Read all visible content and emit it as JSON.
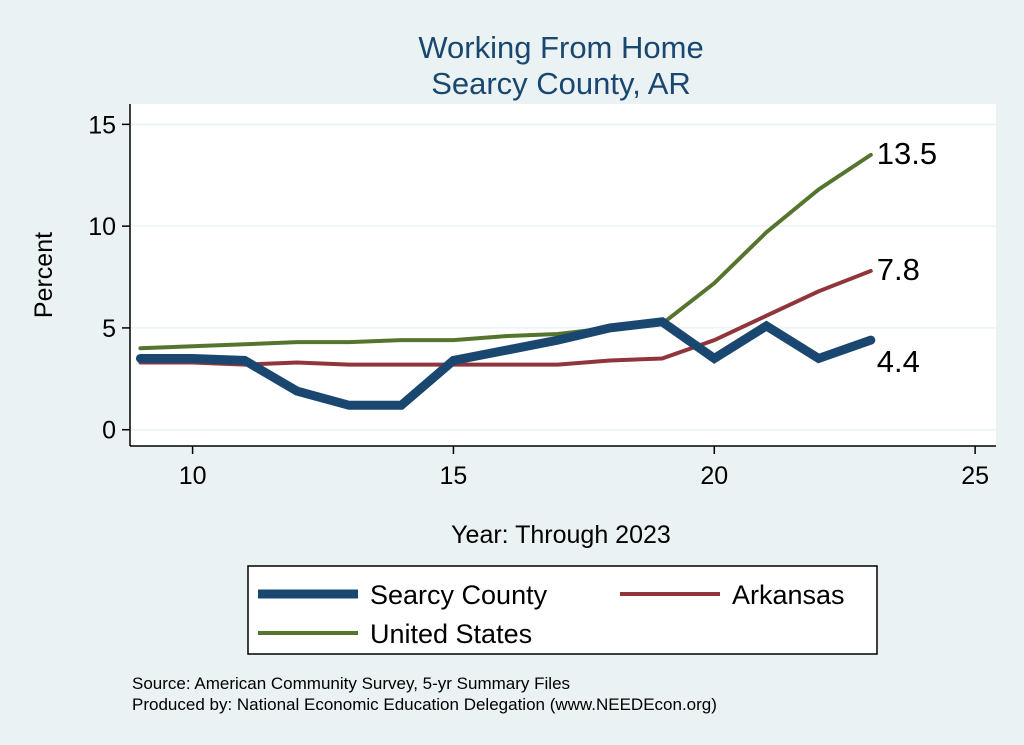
{
  "chart_data": {
    "type": "line",
    "title": "Working From Home",
    "subtitle": "Searcy County, AR",
    "xlabel": "Year: Through 2023",
    "ylabel": "Percent",
    "xlim": [
      8.8,
      25.4
    ],
    "ylim": [
      -0.8,
      16
    ],
    "xticks": [
      10,
      15,
      20,
      25
    ],
    "yticks": [
      0,
      5,
      10,
      15
    ],
    "grid": true,
    "legend_position": "bottom",
    "x": [
      9,
      10,
      11,
      12,
      13,
      14,
      15,
      16,
      17,
      18,
      19,
      20,
      21,
      22,
      23
    ],
    "series": [
      {
        "name": "Searcy County",
        "color": "#1a476f",
        "width": 9,
        "values": [
          3.5,
          3.5,
          3.4,
          1.9,
          1.2,
          1.2,
          3.4,
          3.9,
          4.4,
          5.0,
          5.3,
          3.5,
          5.1,
          3.5,
          4.4
        ],
        "end_label": "4.4"
      },
      {
        "name": "Arkansas",
        "color": "#90353b",
        "width": 4,
        "values": [
          3.3,
          3.3,
          3.2,
          3.3,
          3.2,
          3.2,
          3.2,
          3.2,
          3.2,
          3.4,
          3.5,
          4.4,
          5.6,
          6.8,
          7.8
        ],
        "end_label": "7.8"
      },
      {
        "name": "United States",
        "color": "#55752f",
        "width": 4,
        "values": [
          4.0,
          4.1,
          4.2,
          4.3,
          4.3,
          4.4,
          4.4,
          4.6,
          4.7,
          5.0,
          5.2,
          7.2,
          9.7,
          11.8,
          13.5
        ],
        "end_label": "13.5"
      }
    ],
    "notes": [
      "Source: American Community Survey, 5-yr Summary Files",
      "Produced by: National Economic Education Delegation (www.NEEDEcon.org)"
    ]
  }
}
